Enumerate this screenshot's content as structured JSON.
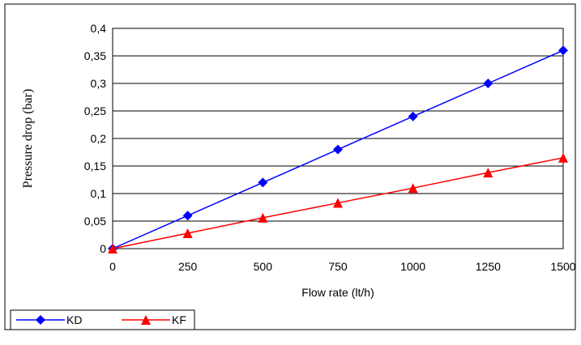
{
  "chart_data": {
    "type": "line",
    "title": "",
    "xlabel": "Flow rate (lt/h)",
    "ylabel": "Pressure drop (bar)",
    "x": [
      0,
      250,
      500,
      750,
      1000,
      1250,
      1500
    ],
    "x_tick_labels": [
      "0",
      "250",
      "500",
      "750",
      "1000",
      "1250",
      "1500"
    ],
    "y_tick_labels": [
      "0",
      "0,05",
      "0,1",
      "0,15",
      "0,2",
      "0,25",
      "0,3",
      "0,35",
      "0,4"
    ],
    "xlim": [
      0,
      1500
    ],
    "ylim": [
      0,
      0.4
    ],
    "grid": "horizontal",
    "legend_position": "bottom-left",
    "series": [
      {
        "name": "KD",
        "marker": "diamond",
        "color": "#0000ff",
        "values": [
          0,
          0.06,
          0.12,
          0.18,
          0.24,
          0.3,
          0.36
        ]
      },
      {
        "name": "KF",
        "marker": "triangle",
        "color": "#ff0000",
        "values": [
          0,
          0.028,
          0.056,
          0.083,
          0.11,
          0.138,
          0.165
        ]
      }
    ]
  }
}
